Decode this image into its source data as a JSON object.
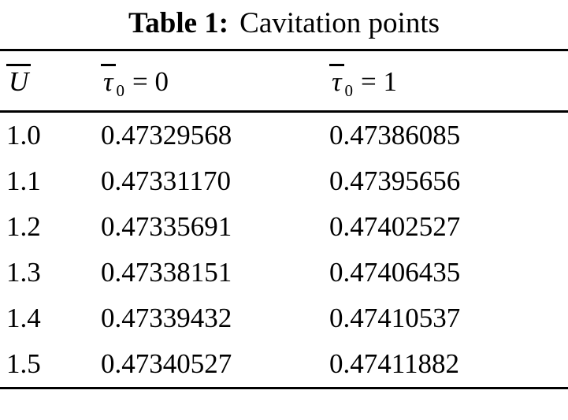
{
  "caption": {
    "label": "Table 1:",
    "text": "Cavitation points"
  },
  "table": {
    "headers": [
      {
        "symbol": "U",
        "sub": "",
        "eq": ""
      },
      {
        "symbol": "τ",
        "sub": "0",
        "eq": "= 0"
      },
      {
        "symbol": "τ",
        "sub": "0",
        "eq": "= 1"
      }
    ],
    "rows": [
      [
        "1.0",
        "0.47329568",
        "0.47386085"
      ],
      [
        "1.1",
        "0.47331170",
        "0.47395656"
      ],
      [
        "1.2",
        "0.47335691",
        "0.47402527"
      ],
      [
        "1.3",
        "0.47338151",
        "0.47406435"
      ],
      [
        "1.4",
        "0.47339432",
        "0.47410537"
      ],
      [
        "1.5",
        "0.47340527",
        "0.47411882"
      ]
    ]
  }
}
